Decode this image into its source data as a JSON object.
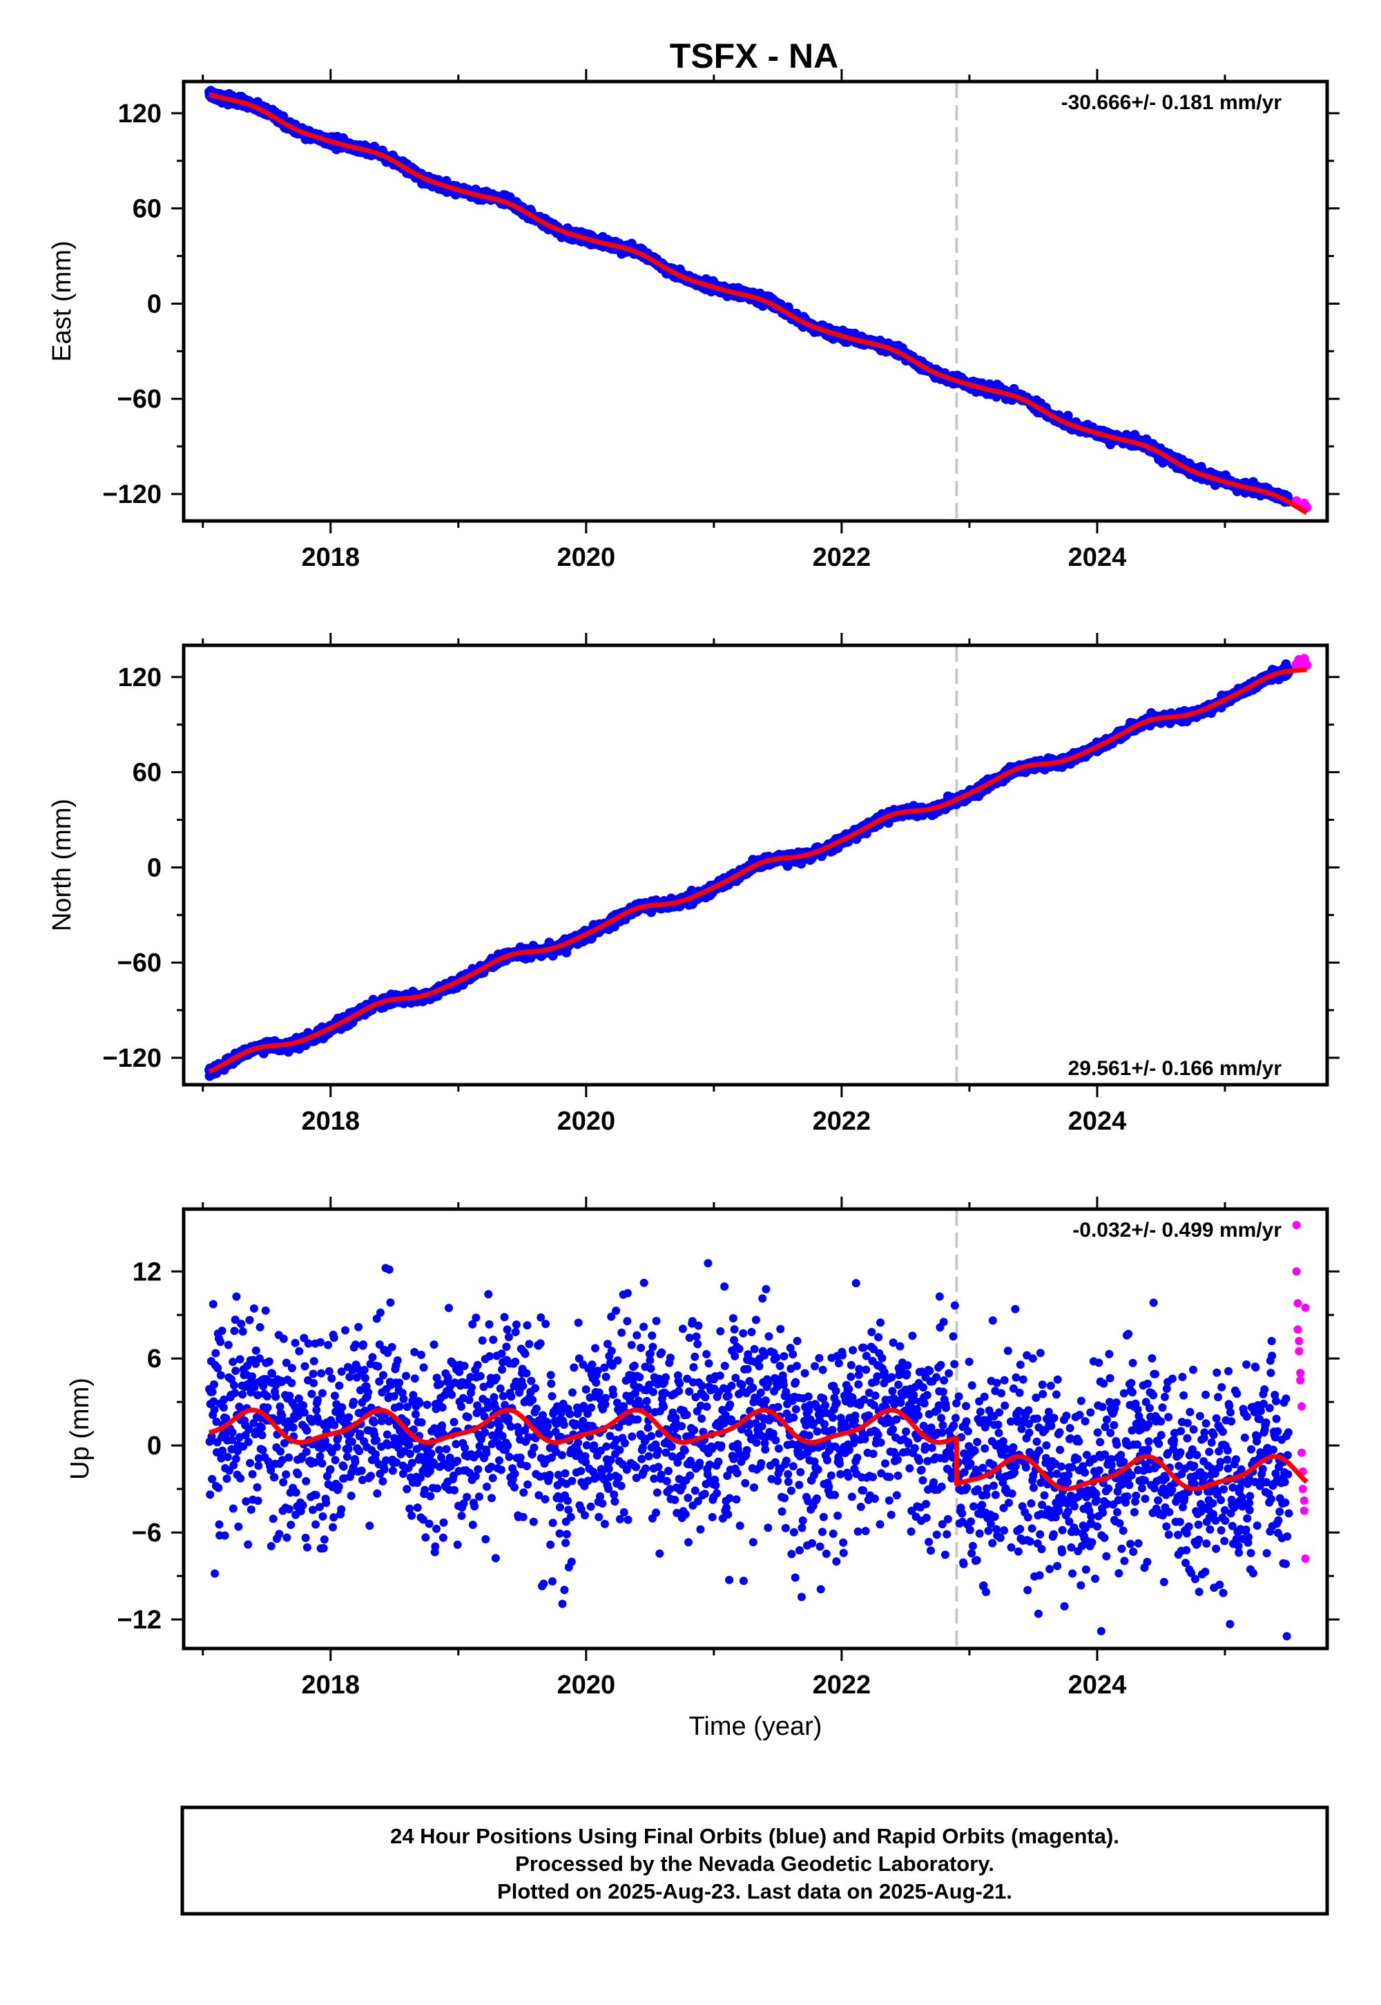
{
  "page": {
    "title": "TSFX - NA"
  },
  "colors": {
    "final_orbits": "#0000ff",
    "rapid_orbits": "#ff00ff",
    "model_fit": "#ff0000",
    "event_line": "#c8c8c8",
    "frame": "#000000"
  },
  "chart_data": [
    {
      "type": "scatter",
      "ylabel": "East (mm)",
      "rate_label": "-30.666+/- 0.181 mm/yr",
      "rate_position": "top-right",
      "xlim": [
        2016.85,
        2025.8
      ],
      "ylim": [
        -137,
        140
      ],
      "x_ticks": [
        2018,
        2020,
        2022,
        2024
      ],
      "x_tick_labels": [
        "2018",
        "2020",
        "2022",
        "2024"
      ],
      "y_ticks": [
        120,
        60,
        0,
        -60,
        -120
      ],
      "y_tick_labels": [
        "120",
        "60",
        "0",
        "−60",
        "−120"
      ],
      "event_line_x": 2022.9,
      "series": [
        {
          "role": "final_orbits",
          "x_range": [
            2017.05,
            2025.5
          ],
          "trend_start": 132.7,
          "rate": -30.666,
          "season_amp": 2.5,
          "scatter": 1.5
        },
        {
          "role": "rapid_orbits",
          "x": [
            2025.56,
            2025.58,
            2025.6,
            2025.62,
            2025.64
          ],
          "y": [
            -124.5,
            -126.5,
            -127.8,
            -126.0,
            -128.5
          ]
        },
        {
          "role": "model_fit",
          "x_range": [
            2017.05,
            2025.64
          ],
          "trend_start": 132.5,
          "rate": -30.666,
          "season_amp": 2.2
        }
      ]
    },
    {
      "type": "scatter",
      "ylabel": "North (mm)",
      "rate_label": "29.561+/- 0.166 mm/yr",
      "rate_position": "bottom-right",
      "xlim": [
        2016.85,
        2025.8
      ],
      "ylim": [
        -137,
        140
      ],
      "x_ticks": [
        2018,
        2020,
        2022,
        2024
      ],
      "x_tick_labels": [
        "2018",
        "2020",
        "2022",
        "2024"
      ],
      "y_ticks": [
        120,
        60,
        0,
        -60,
        -120
      ],
      "y_tick_labels": [
        "120",
        "60",
        "0",
        "−60",
        "−120"
      ],
      "event_line_x": 2022.9,
      "series": [
        {
          "role": "final_orbits",
          "x_range": [
            2017.05,
            2025.5
          ],
          "trend_start": -128.3,
          "rate": 29.561,
          "season_amp": 3.0,
          "scatter": 1.5
        },
        {
          "role": "rapid_orbits",
          "x": [
            2025.56,
            2025.58,
            2025.6,
            2025.62,
            2025.64
          ],
          "y": [
            128.0,
            130.8,
            126.5,
            131.5,
            127.5
          ]
        },
        {
          "role": "model_fit",
          "x_range": [
            2017.05,
            2025.64
          ],
          "trend_start": -128.0,
          "rate": 29.561,
          "season_amp": 2.8
        }
      ]
    },
    {
      "type": "scatter",
      "ylabel": "Up (mm)",
      "xlabel": "Time (year)",
      "rate_label": "-0.032+/- 0.499 mm/yr",
      "rate_position": "top-right",
      "xlim": [
        2016.85,
        2025.8
      ],
      "ylim": [
        -14,
        16.3
      ],
      "x_ticks": [
        2018,
        2020,
        2022,
        2024
      ],
      "x_tick_labels": [
        "2018",
        "2020",
        "2022",
        "2024"
      ],
      "y_ticks": [
        12,
        6,
        0,
        -6,
        -12
      ],
      "y_tick_labels": [
        "12",
        "6",
        "0",
        "−6",
        "−12"
      ],
      "event_line_x": 2022.9,
      "series": [
        {
          "role": "final_orbits",
          "x_range": [
            2017.05,
            2025.5
          ],
          "offset_before": 1.2,
          "offset_after": -2.0,
          "season_amp": 1.0,
          "scatter": 3.6
        },
        {
          "role": "rapid_orbits",
          "x": [
            2025.56,
            2025.56,
            2025.57,
            2025.57,
            2025.58,
            2025.58,
            2025.59,
            2025.59,
            2025.6,
            2025.6,
            2025.61,
            2025.61,
            2025.62,
            2025.62,
            2025.63,
            2025.63
          ],
          "y": [
            15.2,
            12.0,
            9.8,
            8.0,
            7.2,
            6.5,
            5.0,
            4.5,
            2.7,
            -0.5,
            -1.8,
            -3.0,
            -3.8,
            -4.5,
            -7.8,
            9.5
          ]
        },
        {
          "role": "model_fit",
          "x_range": [
            2017.05,
            2025.64
          ],
          "offset_before": 1.2,
          "offset_after": -2.0,
          "season_amp": 1.0
        }
      ]
    }
  ],
  "footer": {
    "line1": "24 Hour Positions Using Final Orbits (blue) and Rapid Orbits (magenta).",
    "line2": "Processed by the Nevada Geodetic Laboratory.",
    "line3": "Plotted on 2025-Aug-23. Last data on 2025-Aug-21."
  }
}
